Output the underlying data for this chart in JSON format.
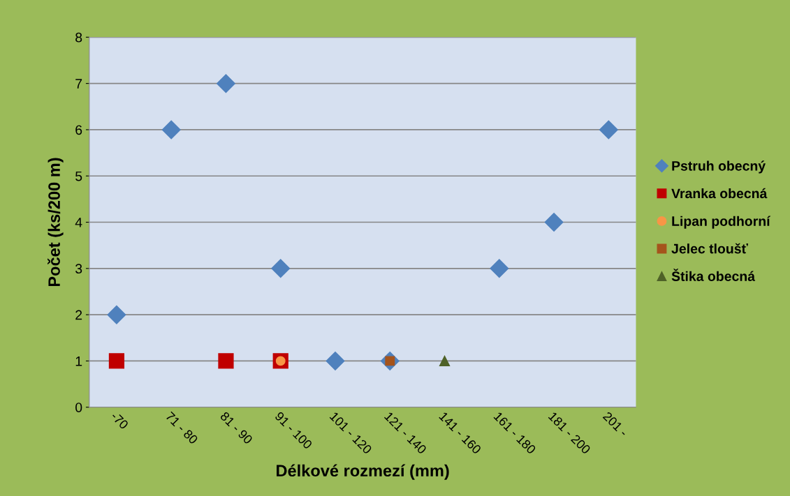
{
  "chart_data": {
    "type": "scatter",
    "xlabel": "Délkové rozmezí (mm)",
    "ylabel": "Počet (ks/200 m)",
    "categories": [
      "-70",
      "71 - 80",
      "81 - 90",
      "91 - 100",
      "101 - 120",
      "121 - 140",
      "141 - 160",
      "161 - 180",
      "181 - 200",
      "201 -"
    ],
    "series": [
      {
        "name": "Pstruh obecný",
        "color": "#4f81bd",
        "marker": "diamond",
        "values": [
          2,
          6,
          7,
          3,
          1,
          1,
          null,
          3,
          4,
          6
        ]
      },
      {
        "name": "Vranka obecná",
        "color": "#c00000",
        "marker": "square",
        "values": [
          1,
          null,
          1,
          1,
          null,
          null,
          null,
          null,
          null,
          null
        ]
      },
      {
        "name": "Lipan podhorní",
        "color": "#f79646",
        "marker": "circle",
        "values": [
          null,
          null,
          null,
          1,
          null,
          null,
          null,
          null,
          null,
          null
        ]
      },
      {
        "name": "Jelec tloušť",
        "color": "#a5541c",
        "marker": "square",
        "values": [
          null,
          null,
          null,
          null,
          null,
          1,
          null,
          null,
          null,
          null
        ]
      },
      {
        "name": "Štika obecná",
        "color": "#4f6228",
        "marker": "triangle",
        "values": [
          null,
          null,
          null,
          null,
          null,
          null,
          1,
          null,
          null,
          null
        ]
      }
    ],
    "ylim": [
      0,
      8
    ],
    "yticks": [
      0,
      1,
      2,
      3,
      4,
      5,
      6,
      7,
      8
    ],
    "grid": "y",
    "legend": "right"
  }
}
